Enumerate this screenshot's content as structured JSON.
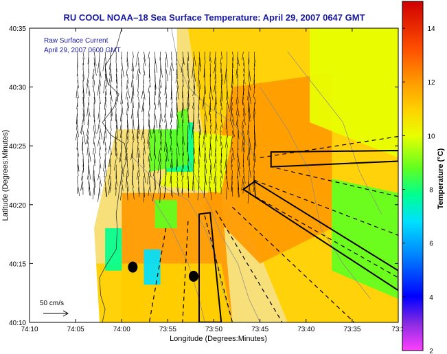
{
  "chart_data": {
    "type": "heatmap",
    "title": "RU COOL  NOAA–18  Sea Surface Temperature:  April 29, 2007 0647 GMT",
    "xlabel": "Longitude (Degrees:Minutes)",
    "ylabel": "Latitude (Degrees:Minutes)",
    "x_ticks": [
      "74:10",
      "74:05",
      "74:00",
      "73:55",
      "73:50",
      "73:45",
      "73:40",
      "73:35",
      "73:3"
    ],
    "y_ticks": [
      "40:35",
      "40:30",
      "40:25",
      "40:20",
      "40:15",
      "40:10"
    ],
    "xlim_minutes_west": [
      70,
      30
    ],
    "ylim_minutes_north": [
      10,
      35
    ],
    "colorbar": {
      "label": "Temperature (°C)",
      "range": [
        2,
        15
      ],
      "ticks": [
        "14",
        "12",
        "10",
        "8",
        "6",
        "4",
        "2"
      ],
      "tick_values": [
        14,
        12,
        10,
        8,
        6,
        4,
        2
      ],
      "colormap": [
        [
          2.0,
          "#ff40ff"
        ],
        [
          3.0,
          "#8a2be2"
        ],
        [
          4.0,
          "#0000ff"
        ],
        [
          5.5,
          "#0080ff"
        ],
        [
          6.8,
          "#00e0ff"
        ],
        [
          7.8,
          "#00ff90"
        ],
        [
          8.8,
          "#60ff20"
        ],
        [
          10.0,
          "#e8ff00"
        ],
        [
          11.0,
          "#ffd000"
        ],
        [
          12.0,
          "#ff9a00"
        ],
        [
          13.2,
          "#ff5000"
        ],
        [
          15.0,
          "#d00000"
        ]
      ]
    },
    "annotations": {
      "vector_legend_title": "Raw Surface Current",
      "vector_legend_date": "April 29, 2007 0600 GMT",
      "vector_scale_label": "50 cm/s"
    },
    "sst_regions": [
      {
        "temp": 11.6,
        "polygon": [
          [
            -73.88,
            40.583
          ],
          [
            -73.5,
            40.583
          ],
          [
            -73.5,
            40.167
          ],
          [
            -73.7,
            40.167
          ],
          [
            -73.78,
            40.32
          ],
          [
            -73.85,
            40.42
          ]
        ]
      },
      {
        "temp": 12.6,
        "polygon": [
          [
            -73.8,
            40.5
          ],
          [
            -73.62,
            40.52
          ],
          [
            -73.62,
            40.3
          ],
          [
            -73.75,
            40.25
          ],
          [
            -73.85,
            40.33
          ]
        ]
      },
      {
        "temp": 12.1,
        "polygon": [
          [
            -74.0,
            40.35
          ],
          [
            -73.82,
            40.35
          ],
          [
            -73.8,
            40.167
          ],
          [
            -74.0,
            40.167
          ]
        ]
      },
      {
        "temp": 11.3,
        "polygon": [
          [
            -74.05,
            40.25
          ],
          [
            -73.82,
            40.25
          ],
          [
            -73.8,
            40.167
          ],
          [
            -74.05,
            40.167
          ]
        ]
      },
      {
        "temp": 10.2,
        "polygon": [
          [
            -73.66,
            40.583
          ],
          [
            -73.5,
            40.583
          ],
          [
            -73.5,
            40.4
          ],
          [
            -73.66,
            40.45
          ]
        ]
      },
      {
        "temp": 9.8,
        "polygon": [
          [
            -73.62,
            40.37
          ],
          [
            -73.5,
            40.35
          ],
          [
            -73.5,
            40.2
          ],
          [
            -73.62,
            40.24
          ]
        ]
      },
      {
        "temp": 10.6,
        "polygon": [
          [
            -73.9,
            40.44
          ],
          [
            -73.8,
            40.43
          ],
          [
            -73.82,
            40.35
          ],
          [
            -73.93,
            40.36
          ]
        ]
      },
      {
        "temp": 8.3,
        "polygon": [
          [
            -73.92,
            40.45
          ],
          [
            -73.87,
            40.45
          ],
          [
            -73.87,
            40.38
          ],
          [
            -73.92,
            40.38
          ]
        ]
      },
      {
        "temp": 8.0,
        "polygon": [
          [
            -74.03,
            40.3
          ],
          [
            -74.0,
            40.3
          ],
          [
            -74.0,
            40.24
          ],
          [
            -74.03,
            40.24
          ]
        ]
      },
      {
        "temp": 7.2,
        "polygon": [
          [
            -73.96,
            40.27
          ],
          [
            -73.93,
            40.27
          ],
          [
            -73.93,
            40.22
          ],
          [
            -73.96,
            40.22
          ]
        ]
      },
      {
        "temp": 9.4,
        "polygon": [
          [
            -73.94,
            40.34
          ],
          [
            -73.9,
            40.34
          ],
          [
            -73.9,
            40.3
          ],
          [
            -73.94,
            40.3
          ]
        ]
      },
      {
        "temp": 9.5,
        "polygon": [
          [
            -73.95,
            40.45
          ],
          [
            -73.88,
            40.47
          ],
          [
            -73.88,
            40.39
          ],
          [
            -73.95,
            40.38
          ]
        ]
      }
    ],
    "land_regions": [
      {
        "polygon": [
          [
            -74.1667,
            40.583
          ],
          [
            -73.9,
            40.583
          ],
          [
            -73.9,
            40.44
          ],
          [
            -74.01,
            40.44
          ],
          [
            -74.05,
            40.3
          ],
          [
            -74.04,
            40.167
          ],
          [
            -74.1667,
            40.167
          ]
        ]
      },
      {
        "polygon": [
          [
            -73.94,
            40.5
          ],
          [
            -73.91,
            40.5
          ],
          [
            -73.9,
            40.44
          ],
          [
            -73.94,
            40.45
          ]
        ]
      }
    ],
    "coastline": [
      [
        -74.0,
        40.583
      ],
      [
        -74.01,
        40.555
      ],
      [
        -74.03,
        40.53
      ],
      [
        -74.025,
        40.505
      ],
      [
        -74.005,
        40.49
      ],
      [
        -74.015,
        40.47
      ],
      [
        -74.035,
        40.45
      ],
      [
        -74.02,
        40.432
      ],
      [
        -73.995,
        40.42
      ],
      [
        -73.99,
        40.4
      ],
      [
        -74.0,
        40.375
      ],
      [
        -74.005,
        40.35
      ],
      [
        -74.01,
        40.32
      ],
      [
        -74.008,
        40.3
      ],
      [
        -74.01,
        40.27
      ],
      [
        -74.03,
        40.245
      ],
      [
        -74.04,
        40.23
      ],
      [
        -74.038,
        40.205
      ],
      [
        -74.03,
        40.185
      ],
      [
        -74.035,
        40.167
      ]
    ],
    "bathymetry_contours": [
      [
        [
          -73.91,
          40.583
        ],
        [
          -73.9,
          40.54
        ],
        [
          -73.88,
          40.5
        ],
        [
          -73.84,
          40.47
        ],
        [
          -73.8,
          40.45
        ],
        [
          -73.78,
          40.43
        ],
        [
          -73.76,
          40.4
        ]
      ],
      [
        [
          -73.98,
          40.4
        ],
        [
          -73.93,
          40.36
        ],
        [
          -73.88,
          40.34
        ],
        [
          -73.85,
          40.3
        ],
        [
          -73.83,
          40.26
        ],
        [
          -73.82,
          40.22
        ],
        [
          -73.8,
          40.167
        ]
      ],
      [
        [
          -73.95,
          40.35
        ],
        [
          -73.91,
          40.3
        ],
        [
          -73.88,
          40.25
        ],
        [
          -73.86,
          40.2
        ],
        [
          -73.85,
          40.167
        ]
      ],
      [
        [
          -73.75,
          40.5
        ],
        [
          -73.7,
          40.44
        ],
        [
          -73.66,
          40.38
        ],
        [
          -73.64,
          40.3
        ],
        [
          -73.6,
          40.25
        ],
        [
          -73.55,
          40.2
        ]
      ],
      [
        [
          -73.7,
          40.55
        ],
        [
          -73.65,
          40.5
        ],
        [
          -73.6,
          40.45
        ],
        [
          -73.57,
          40.38
        ],
        [
          -73.53,
          40.32
        ]
      ],
      [
        [
          -73.88,
          40.4
        ],
        [
          -73.86,
          40.36
        ],
        [
          -73.84,
          40.33
        ],
        [
          -73.82,
          40.29
        ],
        [
          -73.79,
          40.25
        ],
        [
          -73.77,
          40.2
        ],
        [
          -73.75,
          40.167
        ]
      ]
    ],
    "transects_dashed": [
      [
        [
          -73.75,
          40.4
        ],
        [
          -73.5,
          40.43
        ]
      ],
      [
        [
          -73.72,
          40.385
        ],
        [
          -73.5,
          40.345
        ]
      ],
      [
        [
          -73.76,
          40.368
        ],
        [
          -73.5,
          40.29
        ]
      ],
      [
        [
          -73.77,
          40.35
        ],
        [
          -73.5,
          40.23
        ]
      ],
      [
        [
          -73.8,
          40.33
        ],
        [
          -73.58,
          40.167
        ]
      ],
      [
        [
          -73.83,
          40.325
        ],
        [
          -73.71,
          40.167
        ]
      ],
      [
        [
          -73.85,
          40.318
        ],
        [
          -73.8,
          40.167
        ]
      ],
      [
        [
          -73.88,
          40.31
        ],
        [
          -73.89,
          40.167
        ]
      ],
      [
        [
          -73.92,
          40.3
        ],
        [
          -73.95,
          40.167
        ]
      ]
    ],
    "transect_boxes": [
      [
        [
          -73.73,
          40.408
        ],
        [
          -73.5,
          40.41
        ],
        [
          -73.5,
          40.395
        ],
        [
          -73.73,
          40.387
        ]
      ],
      [
        [
          -73.76,
          40.366
        ],
        [
          -73.5,
          40.24
        ],
        [
          -73.5,
          40.212
        ],
        [
          -73.78,
          40.355
        ]
      ],
      [
        [
          -73.86,
          40.32
        ],
        [
          -73.84,
          40.322
        ],
        [
          -73.82,
          40.167
        ],
        [
          -73.86,
          40.167
        ]
      ]
    ],
    "stations": [
      [
        -73.98,
        40.245
      ],
      [
        -73.87,
        40.232
      ]
    ],
    "vector_field": {
      "lon_range": [
        -74.08,
        -73.75
      ],
      "lat_range": [
        40.35,
        40.55
      ],
      "mean_direction": "southward"
    }
  }
}
